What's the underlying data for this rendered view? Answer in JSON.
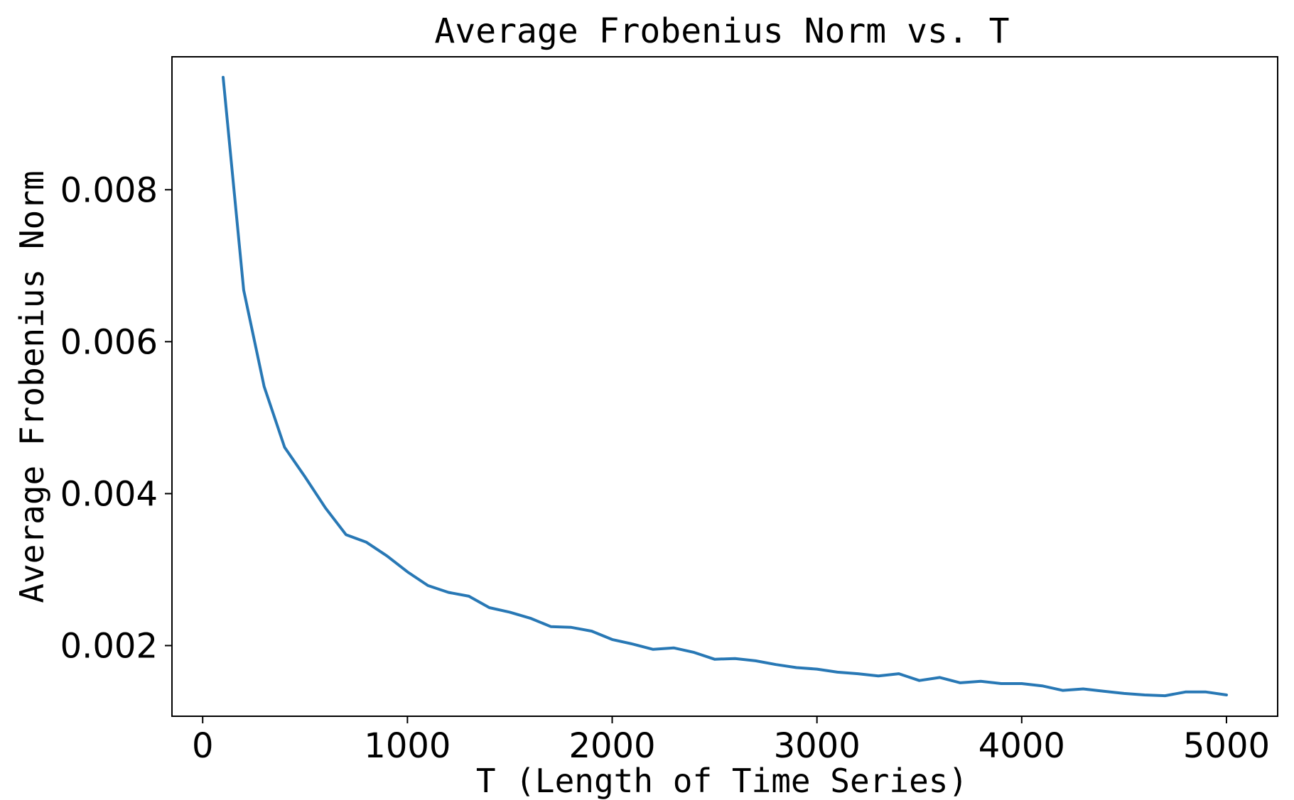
{
  "chart_data": {
    "type": "line",
    "title": "Average Frobenius Norm vs. T",
    "xlabel": "T (Length of Time Series)",
    "ylabel": "Average Frobenius Norm",
    "xlim": [
      -150,
      5250
    ],
    "ylim": [
      0.00107,
      0.00975
    ],
    "xticks": [
      0,
      1000,
      2000,
      3000,
      4000,
      5000
    ],
    "xtick_labels": [
      "0",
      "1000",
      "2000",
      "3000",
      "4000",
      "5000"
    ],
    "yticks": [
      0.002,
      0.004,
      0.006,
      0.008
    ],
    "ytick_labels": [
      "0.002",
      "0.004",
      "0.006",
      "0.008"
    ],
    "grid": false,
    "legend": "none",
    "color": "#2878b5",
    "series": [
      {
        "x": [
          100,
          200,
          300,
          400,
          500,
          600,
          700,
          800,
          900,
          1000,
          1100,
          1200,
          1300,
          1400,
          1500,
          1600,
          1700,
          1800,
          1900,
          2000,
          2100,
          2200,
          2300,
          2400,
          2500,
          2600,
          2700,
          2800,
          2900,
          3000,
          3100,
          3200,
          3300,
          3400,
          3500,
          3600,
          3700,
          3800,
          3900,
          4000,
          4100,
          4200,
          4300,
          4400,
          4500,
          4600,
          4700,
          4800,
          4900,
          5000
        ],
        "y": [
          0.00948,
          0.00668,
          0.00541,
          0.00461,
          0.00422,
          0.00381,
          0.00346,
          0.00336,
          0.00318,
          0.00297,
          0.00279,
          0.0027,
          0.00265,
          0.0025,
          0.00244,
          0.00236,
          0.00225,
          0.00224,
          0.00219,
          0.00208,
          0.00202,
          0.00195,
          0.00197,
          0.00191,
          0.00182,
          0.00183,
          0.0018,
          0.00175,
          0.00171,
          0.00169,
          0.00165,
          0.00163,
          0.0016,
          0.00163,
          0.00154,
          0.00158,
          0.00151,
          0.00153,
          0.0015,
          0.0015,
          0.00147,
          0.00141,
          0.00143,
          0.0014,
          0.00137,
          0.00135,
          0.00134,
          0.00139,
          0.00139,
          0.00135
        ]
      }
    ]
  }
}
